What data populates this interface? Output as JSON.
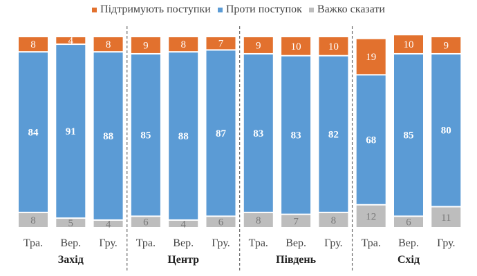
{
  "chart_data": {
    "type": "bar",
    "stacked": true,
    "title": "",
    "legend_position": "top",
    "legend": [
      "Підтримують поступки",
      "Проти поступок",
      "Важко сказати"
    ],
    "colors": [
      "#E2712E",
      "#5B9BD5",
      "#BDBDBD"
    ],
    "groups": [
      {
        "name": "Захід",
        "categories": [
          "Тра.",
          "Вер.",
          "Гру."
        ]
      },
      {
        "name": "Центр",
        "categories": [
          "Тра.",
          "Вер.",
          "Гру."
        ]
      },
      {
        "name": "Південь",
        "categories": [
          "Тра.",
          "Вер.",
          "Гру."
        ]
      },
      {
        "name": "Схід",
        "categories": [
          "Тра.",
          "Вер.",
          "Гру."
        ]
      }
    ],
    "series": [
      {
        "name": "Підтримують поступки",
        "values": [
          8,
          4,
          8,
          9,
          8,
          7,
          9,
          10,
          10,
          19,
          10,
          9
        ]
      },
      {
        "name": "Проти поступок",
        "values": [
          84,
          91,
          88,
          85,
          88,
          87,
          83,
          83,
          82,
          68,
          85,
          80
        ]
      },
      {
        "name": "Важко сказати",
        "values": [
          8,
          5,
          4,
          6,
          4,
          6,
          8,
          7,
          8,
          12,
          6,
          11
        ]
      }
    ],
    "ylim": [
      0,
      100
    ]
  }
}
